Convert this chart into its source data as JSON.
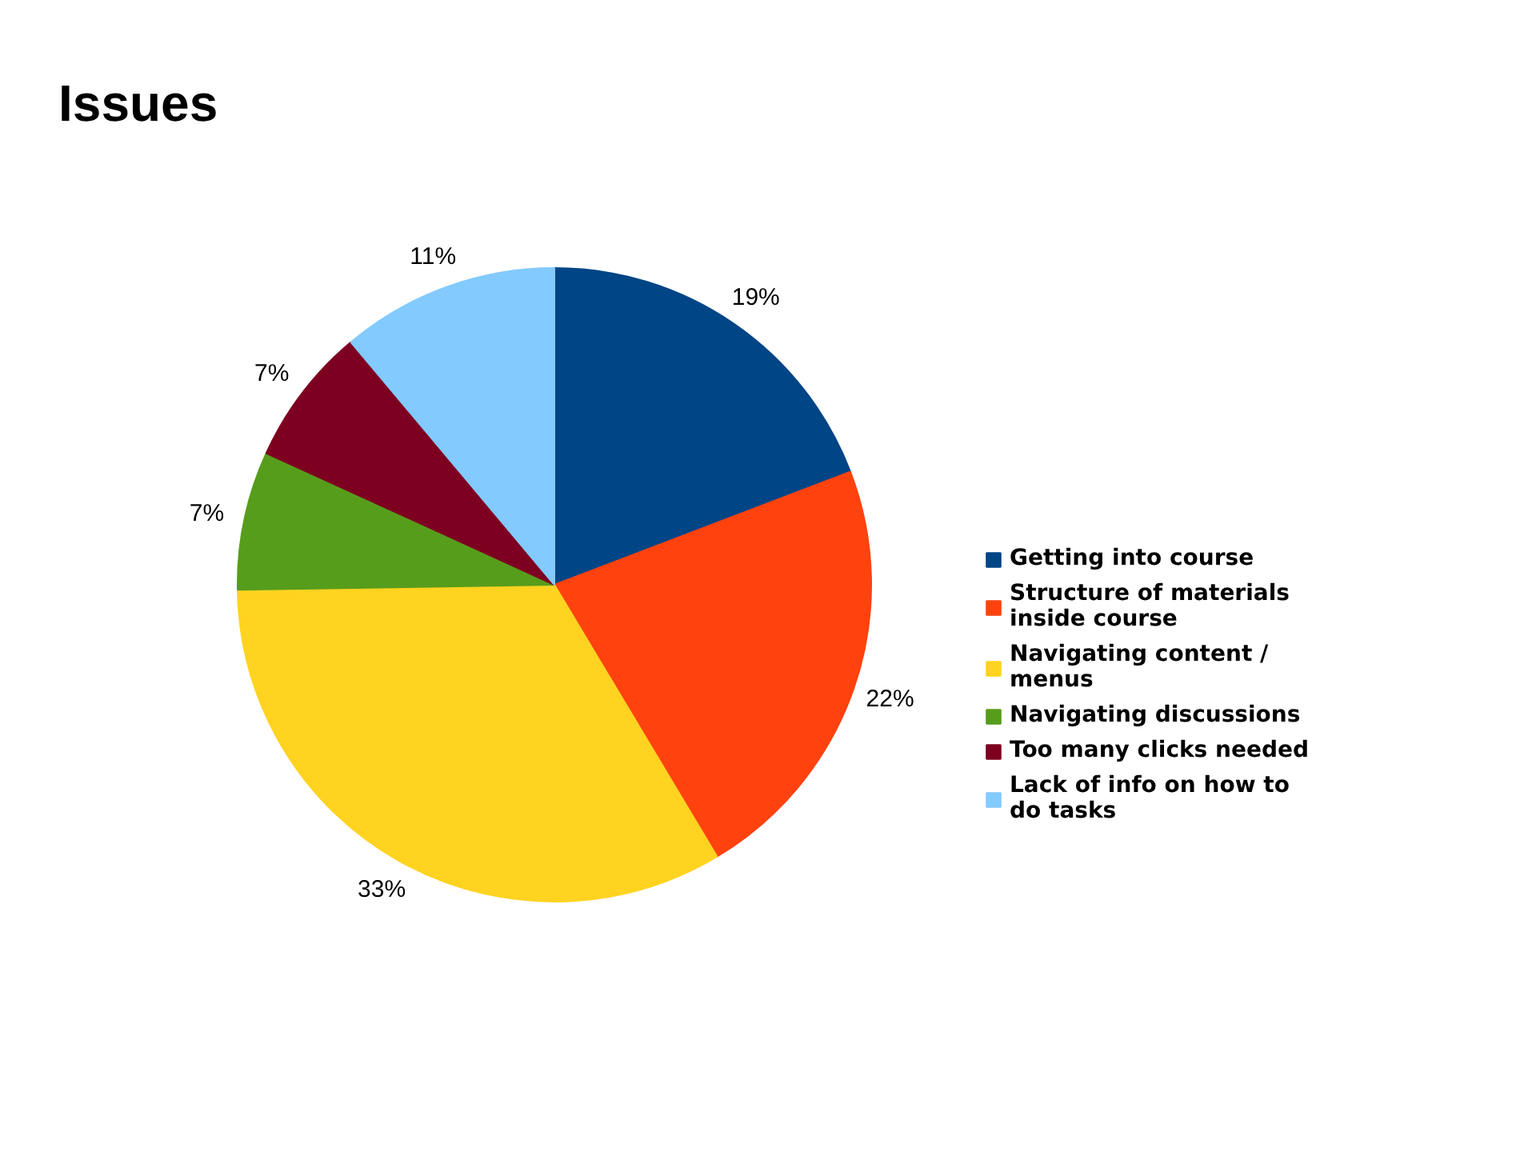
{
  "chart_data": {
    "type": "pie",
    "title": "Issues",
    "categories": [
      "Getting into course",
      "Structure of materials inside course",
      "Navigating content / menus",
      "Navigating discussions",
      "Too many clicks needed",
      "Lack of info on how to do tasks"
    ],
    "values": [
      19,
      22,
      33,
      7,
      7,
      11
    ],
    "colors": [
      "#004586",
      "#ff420e",
      "#ffd320",
      "#579d1c",
      "#7e0021",
      "#83caff"
    ],
    "value_labels": [
      "19%",
      "22%",
      "33%",
      "7%",
      "7%",
      "11%"
    ],
    "legend": "right"
  }
}
